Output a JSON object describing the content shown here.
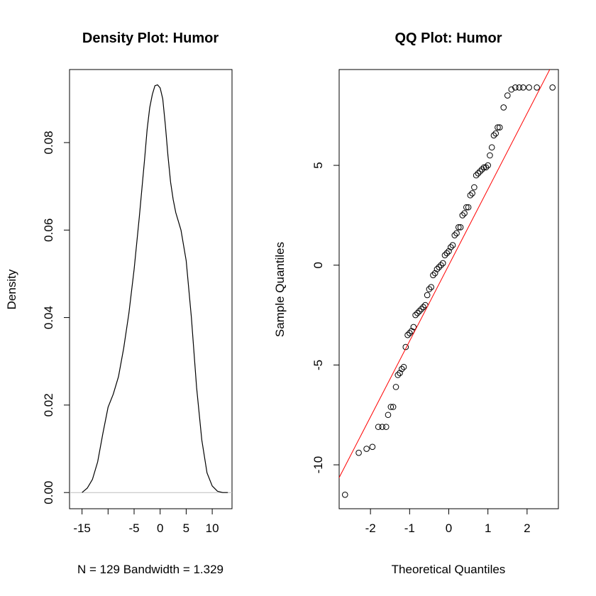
{
  "chart_data": [
    {
      "type": "line",
      "title": "Density Plot: Humor",
      "xlabel": "N = 129   Bandwidth = 1.329",
      "ylabel": "Density",
      "xlim": [
        -17.4,
        13.8
      ],
      "ylim": [
        -0.0037,
        0.0967
      ],
      "xticks": [
        -15,
        -10,
        -5,
        0,
        5,
        10
      ],
      "xtick_labels": [
        "-15",
        "",
        "-5",
        "0",
        "5",
        "10"
      ],
      "yticks": [
        0.0,
        0.02,
        0.04,
        0.06,
        0.08
      ],
      "ytick_labels": [
        "0.00",
        "0.02",
        "0.04",
        "0.06",
        "0.08"
      ],
      "baseline": 0,
      "baseline_color": "#bebebe",
      "line_color": "#000000",
      "series": [
        {
          "x": [
            -15.0,
            -14.0,
            -13.0,
            -12.0,
            -11.0,
            -10.0,
            -9.0,
            -8.0,
            -7.0,
            -6.0,
            -5.0,
            -4.0,
            -3.0,
            -2.5,
            -2.0,
            -1.5,
            -1.0,
            -0.5,
            0.0,
            0.5,
            1.0,
            1.5,
            2.0,
            2.5,
            3.0,
            3.5,
            4.0,
            5.0,
            6.0,
            7.0,
            8.0,
            9.0,
            10.0,
            11.0,
            12.0,
            13.0
          ],
          "y": [
            0.0,
            0.001,
            0.003,
            0.007,
            0.0135,
            0.0195,
            0.0225,
            0.0265,
            0.033,
            0.041,
            0.051,
            0.063,
            0.076,
            0.083,
            0.088,
            0.091,
            0.093,
            0.0932,
            0.0925,
            0.09,
            0.084,
            0.077,
            0.071,
            0.067,
            0.064,
            0.062,
            0.06,
            0.053,
            0.04,
            0.024,
            0.012,
            0.0045,
            0.0015,
            0.0003,
            0.0,
            0.0
          ]
        }
      ]
    },
    {
      "type": "scatter",
      "title": "QQ Plot: Humor",
      "xlabel": "Theoretical Quantiles",
      "ylabel": "Sample Quantiles",
      "xlim": [
        -2.8,
        2.8
      ],
      "ylim": [
        -12.2,
        9.8
      ],
      "xticks": [
        -2,
        -1,
        0,
        1,
        2
      ],
      "xtick_labels": [
        "-2",
        "-1",
        "0",
        "1",
        "2"
      ],
      "yticks": [
        -10,
        -5,
        0,
        5
      ],
      "ytick_labels": [
        "-10",
        "-5",
        "0",
        "5"
      ],
      "point_color": "#000000",
      "reference_line": {
        "slope": 3.8,
        "intercept": 0,
        "color": "#ff0000"
      },
      "series": [
        {
          "x": [
            -2.65,
            -2.3,
            -2.1,
            -1.95,
            -1.8,
            -1.7,
            -1.6,
            -1.55,
            -1.48,
            -1.42,
            -1.35,
            -1.3,
            -1.25,
            -1.2,
            -1.15,
            -1.1,
            -1.05,
            -1.0,
            -0.95,
            -0.9,
            -0.85,
            -0.8,
            -0.75,
            -0.7,
            -0.65,
            -0.6,
            -0.55,
            -0.5,
            -0.45,
            -0.4,
            -0.35,
            -0.3,
            -0.25,
            -0.2,
            -0.15,
            -0.1,
            -0.05,
            0.0,
            0.05,
            0.1,
            0.15,
            0.2,
            0.25,
            0.3,
            0.35,
            0.4,
            0.45,
            0.5,
            0.55,
            0.6,
            0.65,
            0.7,
            0.75,
            0.8,
            0.85,
            0.9,
            0.95,
            1.0,
            1.05,
            1.1,
            1.15,
            1.2,
            1.25,
            1.3,
            1.4,
            1.5,
            1.6,
            1.7,
            1.8,
            1.9,
            2.05,
            2.25,
            2.65
          ],
          "y": [
            -11.5,
            -9.4,
            -9.2,
            -9.1,
            -8.1,
            -8.1,
            -8.1,
            -7.5,
            -7.1,
            -7.1,
            -6.1,
            -5.5,
            -5.4,
            -5.2,
            -5.1,
            -4.1,
            -3.5,
            -3.4,
            -3.3,
            -3.1,
            -2.5,
            -2.4,
            -2.3,
            -2.2,
            -2.1,
            -2.0,
            -1.5,
            -1.2,
            -1.1,
            -0.5,
            -0.4,
            -0.2,
            -0.1,
            0.0,
            0.1,
            0.5,
            0.6,
            0.7,
            0.9,
            1.0,
            1.5,
            1.6,
            1.9,
            1.9,
            2.5,
            2.6,
            2.9,
            2.9,
            3.5,
            3.6,
            3.9,
            4.5,
            4.6,
            4.7,
            4.8,
            4.9,
            4.9,
            5.0,
            5.5,
            5.9,
            6.5,
            6.6,
            6.9,
            6.9,
            7.9,
            8.5,
            8.8,
            8.9,
            8.9,
            8.9,
            8.9,
            8.9,
            8.9
          ]
        }
      ]
    }
  ]
}
